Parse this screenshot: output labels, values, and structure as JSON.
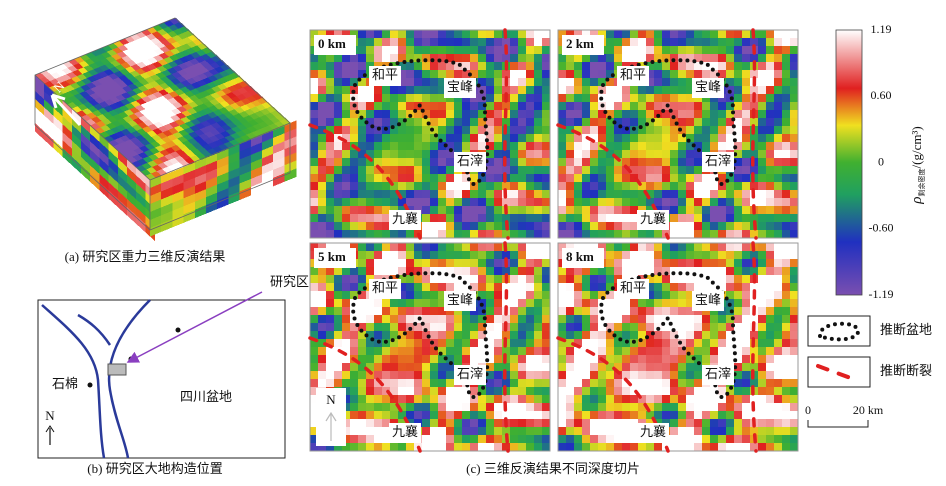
{
  "panel_a": {
    "caption": "(a) 研究区重力三维反演结果",
    "north": "N"
  },
  "panel_b": {
    "caption": "(b) 研究区大地构造位置",
    "study_area": "研究区",
    "shimian": "石棉",
    "basin": "四川盆地",
    "north": "N"
  },
  "panel_c": {
    "caption": "(c) 三维反演结果不同深度切片",
    "north": "N",
    "slices": [
      {
        "depth": "0 km",
        "places": [
          "和平",
          "宝峰",
          "石滓",
          "九襄"
        ]
      },
      {
        "depth": "2 km",
        "places": [
          "和平",
          "宝峰",
          "石滓",
          "九襄"
        ]
      },
      {
        "depth": "5 km",
        "places": [
          "和平",
          "宝峰",
          "石滓",
          "九襄"
        ]
      },
      {
        "depth": "8 km",
        "places": [
          "和平",
          "宝峰",
          "石滓",
          "九襄"
        ]
      }
    ]
  },
  "colorbar": {
    "ticks": [
      "1.19",
      "0.60",
      "0",
      "-0.60",
      "-1.19"
    ],
    "symbol": "ρ",
    "subscript": "剩余密度",
    "unit": "/(g/cm³)"
  },
  "legend": [
    "推断盆地",
    "推断断裂"
  ],
  "scale": [
    "0",
    "20 km"
  ]
}
